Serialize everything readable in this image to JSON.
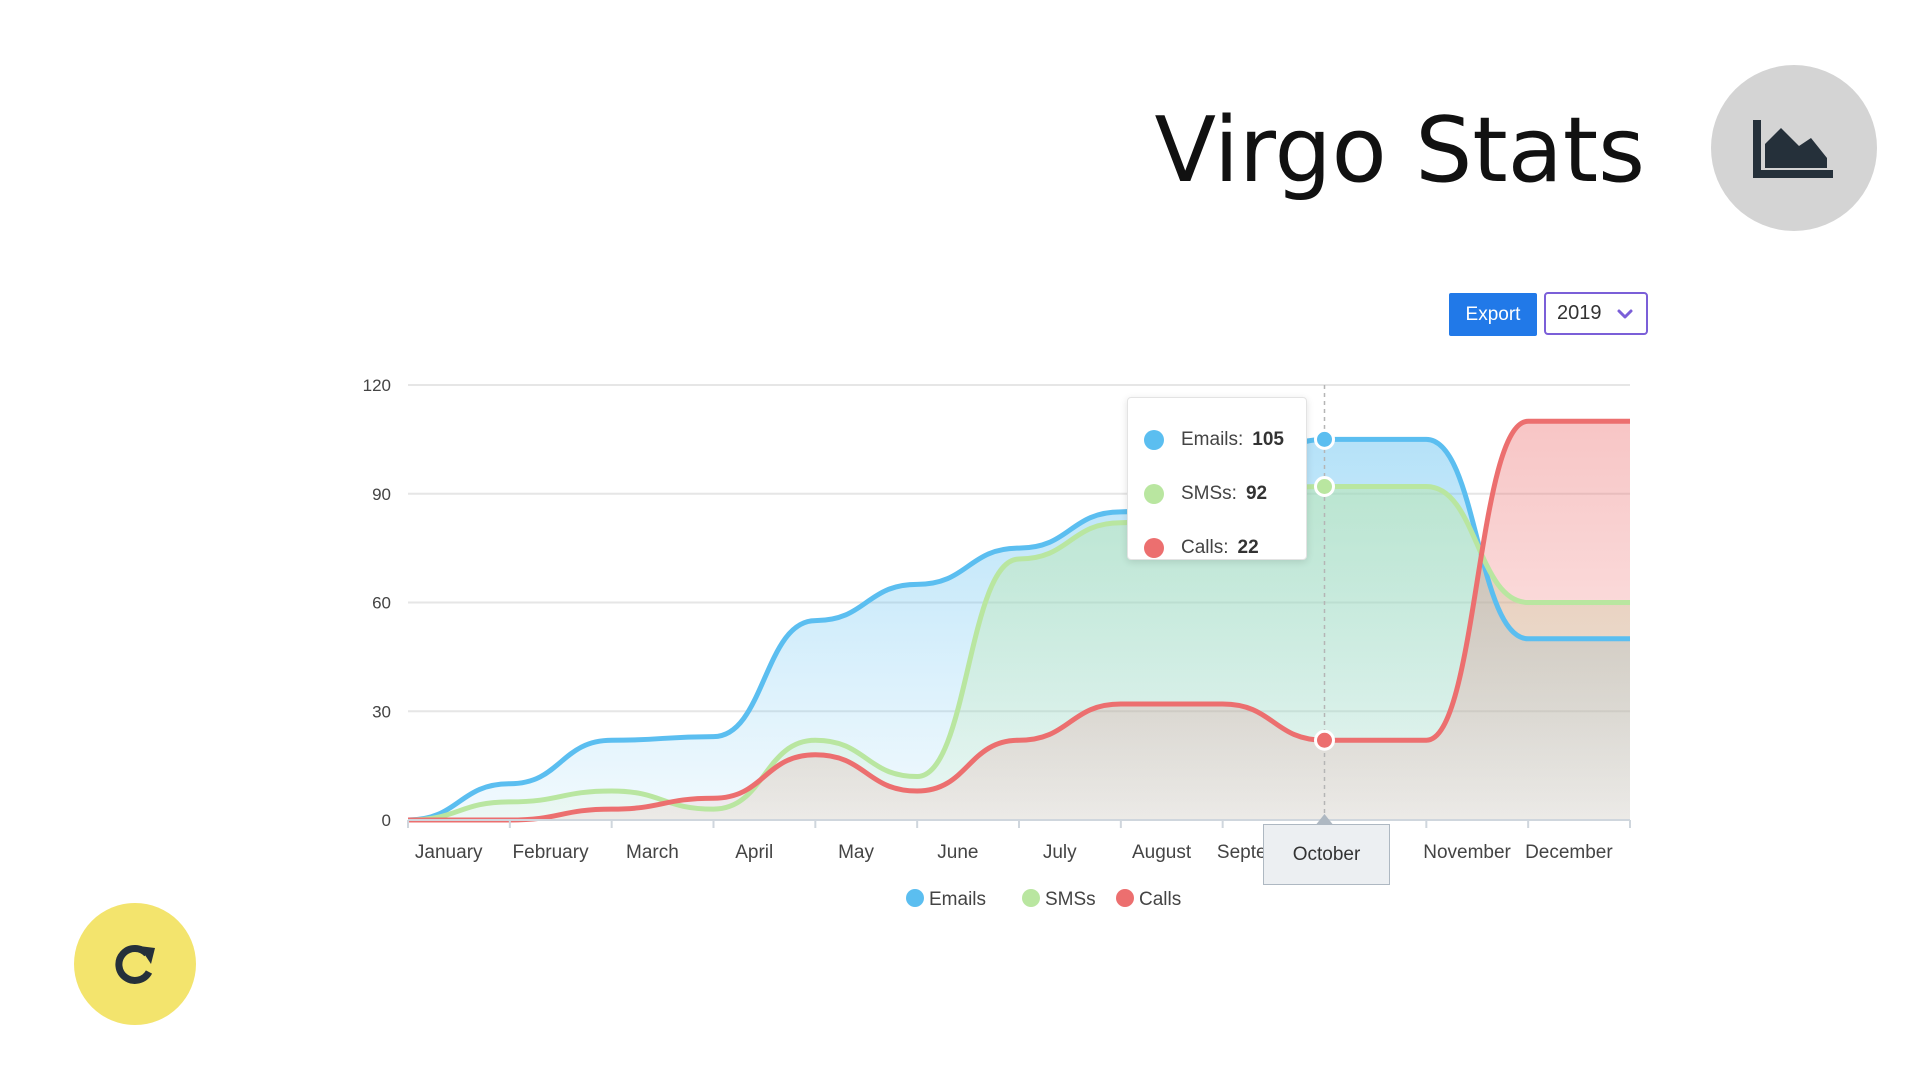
{
  "header": {
    "title": "Virgo Stats",
    "badge_icon": "area-chart-icon"
  },
  "controls": {
    "export_label": "Export",
    "year_value": "2019",
    "year_chevron_icon": "chevron-down-icon"
  },
  "refresh_icon": "refresh-icon",
  "colors": {
    "emails": "#5bbef0",
    "smss": "#b9e6a0",
    "calls": "#ec6f6f",
    "badge_bg": "#d4d4d4",
    "refresh_bg": "#f3e46d",
    "export_bg": "#2179e8"
  },
  "tooltip": {
    "rows": [
      {
        "label": "Emails:",
        "value": "105"
      },
      {
        "label": "SMSs:",
        "value": "92"
      },
      {
        "label": "Calls:",
        "value": "22"
      }
    ]
  },
  "hover_category": "October",
  "chart_data": {
    "type": "area",
    "categories": [
      "January",
      "February",
      "March",
      "April",
      "May",
      "June",
      "July",
      "August",
      "September",
      "October",
      "November",
      "December"
    ],
    "series": [
      {
        "name": "Emails",
        "values": [
          0,
          10,
          22,
          23,
          55,
          65,
          75,
          85,
          95,
          105,
          105,
          50
        ]
      },
      {
        "name": "SMSs",
        "values": [
          0,
          5,
          8,
          3,
          22,
          12,
          72,
          82,
          90,
          92,
          92,
          60
        ]
      },
      {
        "name": "Calls",
        "values": [
          0,
          0,
          3,
          6,
          18,
          8,
          22,
          32,
          32,
          22,
          22,
          110
        ]
      }
    ],
    "yticks": [
      0,
      30,
      60,
      90,
      120
    ],
    "ylim": [
      0,
      120
    ],
    "grid": true,
    "legend": "bottom-center",
    "highlight_index": 9
  }
}
